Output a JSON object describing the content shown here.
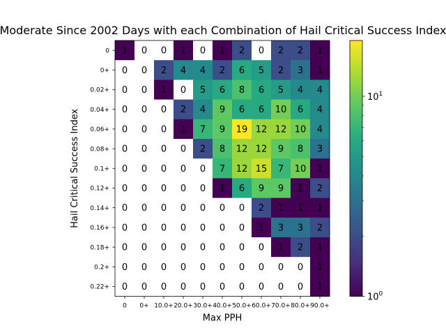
{
  "chart_data": {
    "type": "heatmap",
    "title": "Moderate Since 2002 Days with each Combination of Hail Critical Success Index",
    "xlabel": "Max PPH",
    "ylabel": "Hail Critical Success Index",
    "x_categories": [
      "0",
      "0+",
      "10.0+",
      "20.0+",
      "30.0+",
      "40.0+",
      "50.0+",
      "60.0+",
      "70.0+",
      "80.0+",
      "90.0+"
    ],
    "y_categories": [
      "0",
      "0+",
      "0.02+",
      "0.04+",
      "0.06+",
      "0.08+",
      "0.1+",
      "0.12+",
      "0.14+",
      "0.16+",
      "0.18+",
      "0.2+",
      "0.22+"
    ],
    "values": [
      [
        1,
        0,
        0,
        1,
        0,
        1,
        2,
        0,
        2,
        2,
        1
      ],
      [
        0,
        0,
        2,
        4,
        4,
        2,
        6,
        5,
        2,
        3,
        1
      ],
      [
        0,
        0,
        1,
        0,
        5,
        6,
        8,
        6,
        5,
        4,
        4
      ],
      [
        0,
        0,
        0,
        2,
        4,
        9,
        6,
        6,
        10,
        6,
        4
      ],
      [
        0,
        0,
        0,
        1,
        7,
        9,
        19,
        12,
        12,
        10,
        4
      ],
      [
        0,
        0,
        0,
        0,
        2,
        8,
        12,
        12,
        9,
        8,
        3
      ],
      [
        0,
        0,
        0,
        0,
        0,
        7,
        12,
        15,
        7,
        10,
        1
      ],
      [
        0,
        0,
        0,
        0,
        0,
        1,
        6,
        9,
        9,
        1,
        2
      ],
      [
        0,
        0,
        0,
        0,
        0,
        0,
        0,
        2,
        1,
        1,
        1
      ],
      [
        0,
        0,
        0,
        0,
        0,
        0,
        0,
        1,
        3,
        3,
        2
      ],
      [
        0,
        0,
        0,
        0,
        0,
        0,
        0,
        0,
        1,
        2,
        1
      ],
      [
        0,
        0,
        0,
        0,
        0,
        0,
        0,
        0,
        0,
        0,
        1
      ],
      [
        0,
        0,
        0,
        0,
        0,
        0,
        0,
        0,
        0,
        0,
        1
      ]
    ],
    "colorbar": {
      "scale": "log",
      "colormap": "viridis",
      "vmin": 1,
      "vmax": 19,
      "tick_labels": [
        "10^0",
        "10^1"
      ],
      "tick_values": [
        1,
        10
      ]
    },
    "zero_cells_color": "#ffffff",
    "grid": false,
    "legend": "none"
  }
}
